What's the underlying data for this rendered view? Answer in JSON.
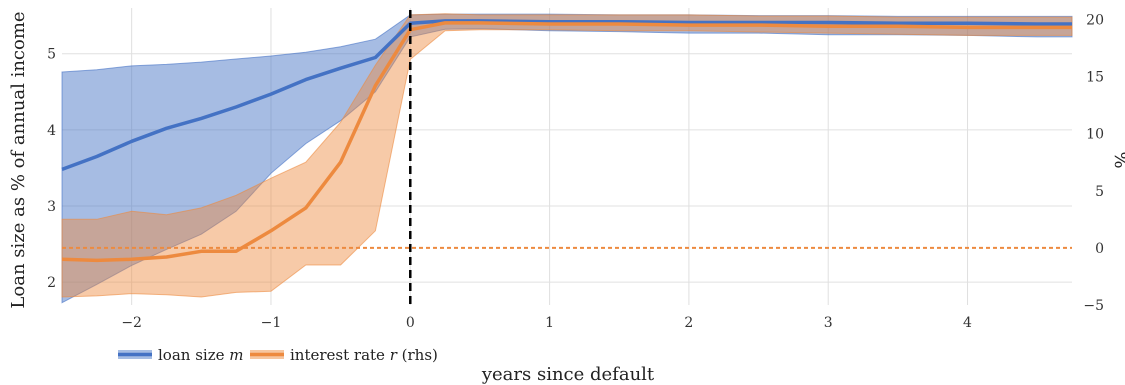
{
  "chart_data": {
    "type": "line",
    "xlabel": "years since default",
    "ylabel_left": "Loan size as % of annual income",
    "ylabel_right": "%",
    "x_ticks": [
      "−2",
      "−1",
      "0",
      "1",
      "2",
      "3",
      "4"
    ],
    "y_left_ticks": [
      "2",
      "3",
      "4",
      "5"
    ],
    "y_right_ticks": [
      "−5",
      "0",
      "5",
      "10",
      "15",
      "20"
    ],
    "xlim": [
      -2.5,
      4.75
    ],
    "ylim_left": [
      1.7,
      5.6
    ],
    "ylim_right": [
      -5,
      21
    ],
    "grid": true,
    "vline_x": 0,
    "hline_right": 0,
    "legend_placement": "bottom-left",
    "colors": {
      "loan": "#4472c4",
      "rate": "#ed8a3f",
      "zero_line": "#ed8a3f",
      "vline": "#000000",
      "grid": "#e0e0e0"
    },
    "x": [
      -2.5,
      -2.25,
      -2.0,
      -1.75,
      -1.5,
      -1.25,
      -1.0,
      -0.75,
      -0.5,
      -0.25,
      0.0,
      0.25,
      0.5,
      1.0,
      1.5,
      2.0,
      2.5,
      3.0,
      3.5,
      4.0,
      4.5,
      4.75
    ],
    "series": [
      {
        "name": "loan size m",
        "axis": "left",
        "values": [
          3.48,
          3.65,
          3.85,
          4.02,
          4.15,
          4.3,
          4.47,
          4.66,
          4.81,
          4.95,
          5.4,
          5.43,
          5.43,
          5.42,
          5.42,
          5.41,
          5.41,
          5.41,
          5.4,
          5.4,
          5.39,
          5.39
        ],
        "lower": [
          1.73,
          1.97,
          2.22,
          2.43,
          2.63,
          2.93,
          3.43,
          3.82,
          4.12,
          4.5,
          5.22,
          5.32,
          5.33,
          5.3,
          5.29,
          5.27,
          5.27,
          5.25,
          5.25,
          5.24,
          5.22,
          5.22
        ],
        "upper": [
          4.76,
          4.79,
          4.84,
          4.86,
          4.89,
          4.93,
          4.97,
          5.02,
          5.09,
          5.19,
          5.51,
          5.52,
          5.52,
          5.52,
          5.51,
          5.51,
          5.5,
          5.5,
          5.49,
          5.49,
          5.49,
          5.49
        ]
      },
      {
        "name": "interest rate r (rhs)",
        "axis": "right",
        "values": [
          -1.0,
          -1.1,
          -1.0,
          -0.8,
          -0.3,
          -0.3,
          1.5,
          3.5,
          7.5,
          14.2,
          19.1,
          19.7,
          19.7,
          19.6,
          19.6,
          19.5,
          19.5,
          19.4,
          19.4,
          19.3,
          19.3,
          19.3
        ],
        "lower": [
          -4.3,
          -4.2,
          -4.0,
          -4.1,
          -4.3,
          -3.9,
          -3.8,
          -1.5,
          -1.5,
          1.5,
          16.5,
          19.0,
          19.1,
          19.1,
          19.0,
          19.0,
          18.9,
          18.8,
          18.7,
          18.6,
          18.6,
          18.6
        ],
        "upper": [
          2.5,
          2.5,
          3.2,
          2.9,
          3.5,
          4.6,
          6.1,
          7.5,
          11.0,
          16.0,
          20.4,
          20.5,
          20.4,
          20.4,
          20.4,
          20.4,
          20.3,
          20.3,
          20.2,
          20.2,
          20.2,
          20.2
        ]
      }
    ],
    "legend": [
      {
        "label": "loan size",
        "math": "m",
        "suffix": ""
      },
      {
        "label": "interest rate",
        "math": "r",
        "suffix": " (rhs)"
      }
    ]
  }
}
